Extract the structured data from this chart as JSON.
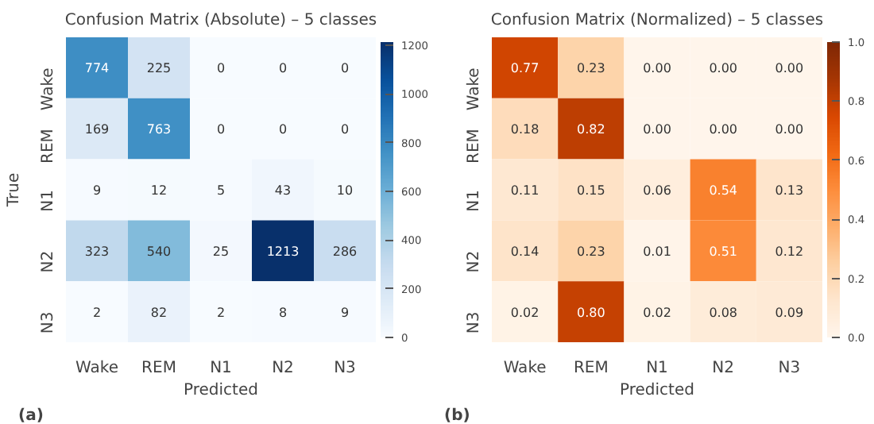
{
  "chart_data": [
    {
      "type": "heatmap",
      "title": "Confusion Matrix (Absolute) – 5 classes",
      "xlabel": "Predicted",
      "ylabel": "True",
      "categories": [
        "Wake",
        "REM",
        "N1",
        "N2",
        "N3"
      ],
      "y_categories": [
        "Wake",
        "REM",
        "N1",
        "N2",
        "N3"
      ],
      "cells": [
        [
          774,
          225,
          0,
          0,
          0
        ],
        [
          169,
          763,
          0,
          0,
          0
        ],
        [
          9,
          12,
          5,
          43,
          10
        ],
        [
          323,
          540,
          25,
          1213,
          286
        ],
        [
          2,
          82,
          2,
          8,
          9
        ]
      ],
      "data_labels": true,
      "clim": [
        0,
        1213
      ],
      "cticks": [
        0,
        200,
        400,
        600,
        800,
        1000,
        1200
      ],
      "annotations": [
        "(a)"
      ]
    },
    {
      "type": "heatmap",
      "title": "Confusion Matrix (Normalized) – 5 classes",
      "xlabel": "Predicted",
      "categories": [
        "Wake",
        "REM",
        "N1",
        "N2",
        "N3"
      ],
      "y_categories": [
        "Wake",
        "REM",
        "N1",
        "N2",
        "N3"
      ],
      "cells": [
        [
          0.77,
          0.23,
          0.0,
          0.0,
          0.0
        ],
        [
          0.18,
          0.82,
          0.0,
          0.0,
          0.0
        ],
        [
          0.11,
          0.15,
          0.06,
          0.54,
          0.13
        ],
        [
          0.14,
          0.23,
          0.01,
          0.51,
          0.12
        ],
        [
          0.02,
          0.8,
          0.02,
          0.08,
          0.09
        ]
      ],
      "cell_labels": [
        [
          "0.77",
          "0.23",
          "0.00",
          "0.00",
          "0.00"
        ],
        [
          "0.18",
          "0.82",
          "0.00",
          "0.00",
          "0.00"
        ],
        [
          "0.11",
          "0.15",
          "0.06",
          "0.54",
          "0.13"
        ],
        [
          "0.14",
          "0.23",
          "0.01",
          "0.51",
          "0.12"
        ],
        [
          "0.02",
          "0.80",
          "0.02",
          "0.08",
          "0.09"
        ]
      ],
      "clim": [
        0,
        1
      ],
      "cticks": [
        {
          "value": 0,
          "label": "0.0"
        },
        0.2,
        0.4,
        0.6,
        0.8,
        {
          "value": 1,
          "label": "1.0"
        }
      ],
      "annotations": [
        "(b)"
      ]
    }
  ]
}
